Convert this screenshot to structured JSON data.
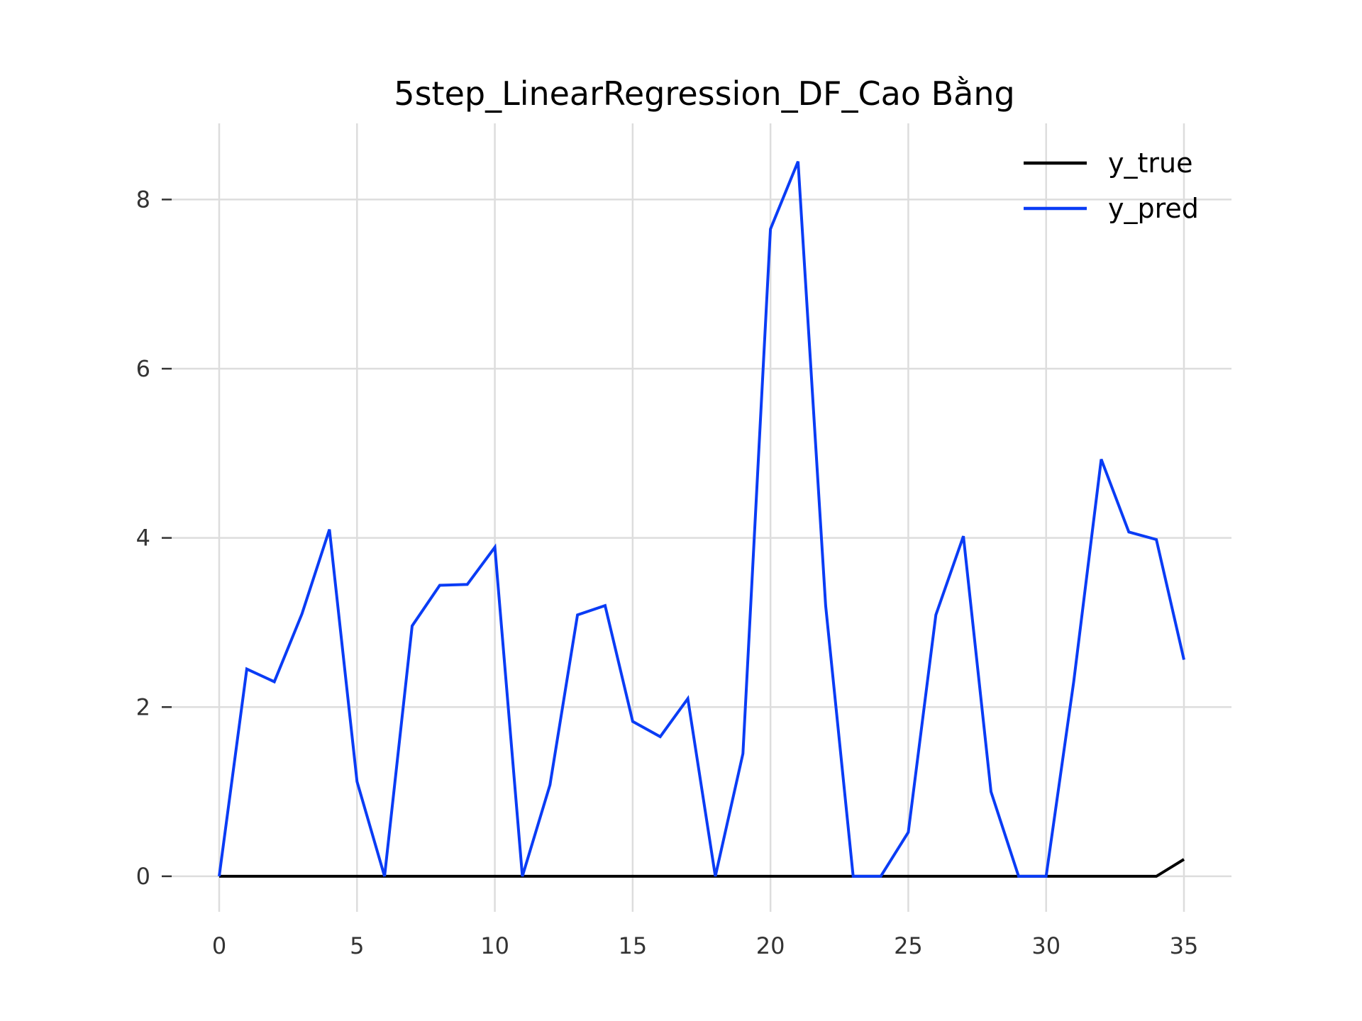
{
  "chart_data": {
    "type": "line",
    "title": "5step_LinearRegression_DF_Cao Bằng",
    "xlabel": "",
    "ylabel": "",
    "xlim": [
      0,
      35
    ],
    "ylim": [
      -0.42,
      8.9
    ],
    "x_ticks": [
      0,
      5,
      10,
      15,
      20,
      25,
      30,
      35
    ],
    "y_ticks": [
      0,
      2,
      4,
      6,
      8
    ],
    "grid": true,
    "legend_position": "top-right",
    "x": [
      0,
      1,
      2,
      3,
      4,
      5,
      6,
      7,
      8,
      9,
      10,
      11,
      12,
      13,
      14,
      15,
      16,
      17,
      18,
      19,
      20,
      21,
      22,
      23,
      24,
      25,
      26,
      27,
      28,
      29,
      30,
      31,
      32,
      33,
      34,
      35
    ],
    "series": [
      {
        "name": "y_true",
        "color": "#000000",
        "values": [
          0,
          0,
          0,
          0,
          0,
          0,
          0,
          0,
          0,
          0,
          0,
          0,
          0,
          0,
          0,
          0,
          0,
          0,
          0,
          0,
          0,
          0,
          0,
          0,
          0,
          0,
          0,
          0,
          0,
          0,
          0,
          0,
          0,
          0,
          0,
          0.2
        ]
      },
      {
        "name": "y_pred",
        "color": "#0a3cf5",
        "values": [
          0,
          2.45,
          2.3,
          3.1,
          4.1,
          1.12,
          0,
          2.96,
          3.44,
          3.45,
          3.89,
          0,
          1.08,
          3.09,
          3.2,
          1.83,
          1.65,
          2.1,
          0,
          1.45,
          7.65,
          8.45,
          3.2,
          0,
          0,
          0.52,
          3.09,
          4.02,
          1.0,
          0,
          0,
          2.3,
          4.93,
          4.07,
          3.98,
          2.56
        ]
      }
    ]
  }
}
